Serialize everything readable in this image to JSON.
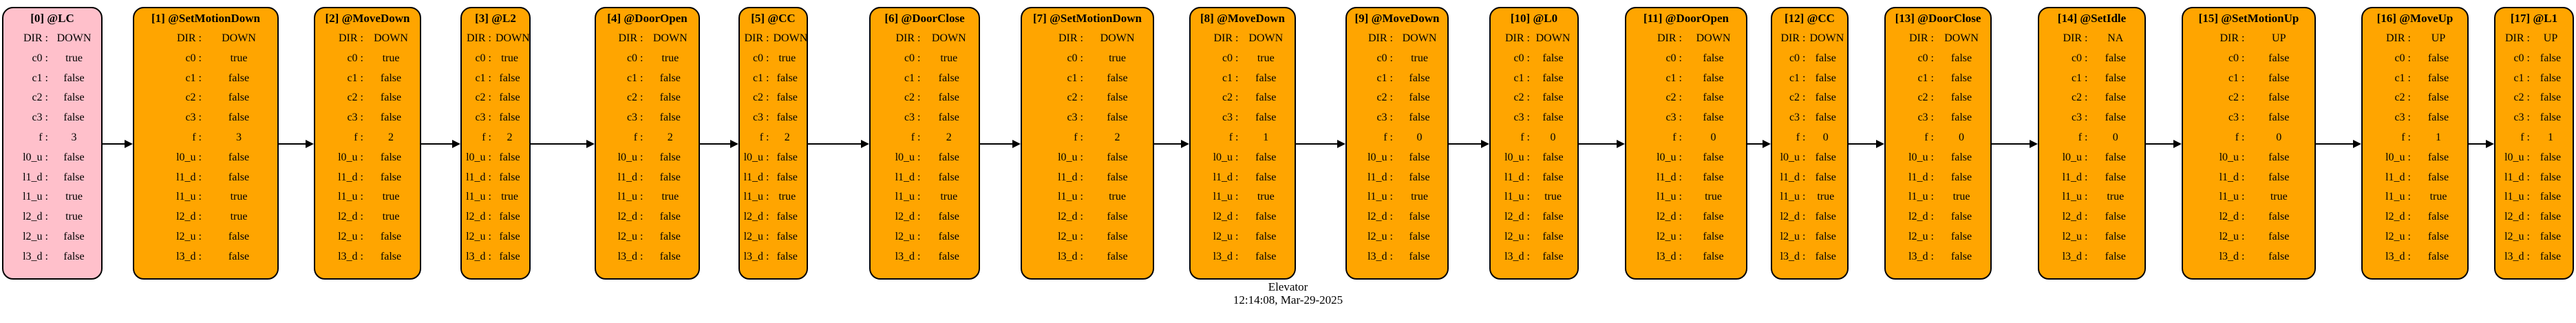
{
  "diagram_title": "Elevator",
  "timestamp": "12:14:08, Mar-29-2025",
  "fields": [
    "DIR :",
    "c0 :",
    "c1 :",
    "c2 :",
    "c3 :",
    "f :",
    "l0_u :",
    "l1_d :",
    "l1_u :",
    "l2_d :",
    "l2_u :",
    "l3_d :"
  ],
  "colors": {
    "initial_state": "#ffc0cb",
    "state": "#ffa500",
    "edge": "#000000"
  },
  "states": [
    {
      "title": "[0] @LC",
      "kind": "initial",
      "values": [
        "DOWN",
        "true",
        "false",
        "false",
        "false",
        "3",
        "false",
        "false",
        "true",
        "true",
        "false",
        "false"
      ]
    },
    {
      "title": "[1] @SetMotionDown",
      "kind": "normal",
      "values": [
        "DOWN",
        "true",
        "false",
        "false",
        "false",
        "3",
        "false",
        "false",
        "true",
        "true",
        "false",
        "false"
      ]
    },
    {
      "title": "[2] @MoveDown",
      "kind": "normal",
      "values": [
        "DOWN",
        "true",
        "false",
        "false",
        "false",
        "2",
        "false",
        "false",
        "true",
        "true",
        "false",
        "false"
      ]
    },
    {
      "title": "[3] @L2",
      "kind": "normal",
      "values": [
        "DOWN",
        "true",
        "false",
        "false",
        "false",
        "2",
        "false",
        "false",
        "true",
        "false",
        "false",
        "false"
      ]
    },
    {
      "title": "[4] @DoorOpen",
      "kind": "normal",
      "values": [
        "DOWN",
        "true",
        "false",
        "false",
        "false",
        "2",
        "false",
        "false",
        "true",
        "false",
        "false",
        "false"
      ]
    },
    {
      "title": "[5] @CC",
      "kind": "normal",
      "values": [
        "DOWN",
        "true",
        "false",
        "false",
        "false",
        "2",
        "false",
        "false",
        "true",
        "false",
        "false",
        "false"
      ]
    },
    {
      "title": "[6] @DoorClose",
      "kind": "normal",
      "values": [
        "DOWN",
        "true",
        "false",
        "false",
        "false",
        "2",
        "false",
        "false",
        "true",
        "false",
        "false",
        "false"
      ]
    },
    {
      "title": "[7] @SetMotionDown",
      "kind": "normal",
      "values": [
        "DOWN",
        "true",
        "false",
        "false",
        "false",
        "2",
        "false",
        "false",
        "true",
        "false",
        "false",
        "false"
      ]
    },
    {
      "title": "[8] @MoveDown",
      "kind": "normal",
      "values": [
        "DOWN",
        "true",
        "false",
        "false",
        "false",
        "1",
        "false",
        "false",
        "true",
        "false",
        "false",
        "false"
      ]
    },
    {
      "title": "[9] @MoveDown",
      "kind": "normal",
      "values": [
        "DOWN",
        "true",
        "false",
        "false",
        "false",
        "0",
        "false",
        "false",
        "true",
        "false",
        "false",
        "false"
      ]
    },
    {
      "title": "[10] @L0",
      "kind": "normal",
      "values": [
        "DOWN",
        "false",
        "false",
        "false",
        "false",
        "0",
        "false",
        "false",
        "true",
        "false",
        "false",
        "false"
      ]
    },
    {
      "title": "[11] @DoorOpen",
      "kind": "normal",
      "values": [
        "DOWN",
        "false",
        "false",
        "false",
        "false",
        "0",
        "false",
        "false",
        "true",
        "false",
        "false",
        "false"
      ]
    },
    {
      "title": "[12] @CC",
      "kind": "normal",
      "values": [
        "DOWN",
        "false",
        "false",
        "false",
        "false",
        "0",
        "false",
        "false",
        "true",
        "false",
        "false",
        "false"
      ]
    },
    {
      "title": "[13] @DoorClose",
      "kind": "normal",
      "values": [
        "DOWN",
        "false",
        "false",
        "false",
        "false",
        "0",
        "false",
        "false",
        "true",
        "false",
        "false",
        "false"
      ]
    },
    {
      "title": "[14] @SetIdle",
      "kind": "normal",
      "values": [
        "NA",
        "false",
        "false",
        "false",
        "false",
        "0",
        "false",
        "false",
        "true",
        "false",
        "false",
        "false"
      ]
    },
    {
      "title": "[15] @SetMotionUp",
      "kind": "normal",
      "values": [
        "UP",
        "false",
        "false",
        "false",
        "false",
        "0",
        "false",
        "false",
        "true",
        "false",
        "false",
        "false"
      ]
    },
    {
      "title": "[16] @MoveUp",
      "kind": "normal",
      "values": [
        "UP",
        "false",
        "false",
        "false",
        "false",
        "1",
        "false",
        "false",
        "true",
        "false",
        "false",
        "false"
      ]
    },
    {
      "title": "[17] @L1",
      "kind": "normal",
      "values": [
        "UP",
        "false",
        "false",
        "false",
        "false",
        "1",
        "false",
        "false",
        "false",
        "false",
        "false",
        "false"
      ]
    }
  ]
}
